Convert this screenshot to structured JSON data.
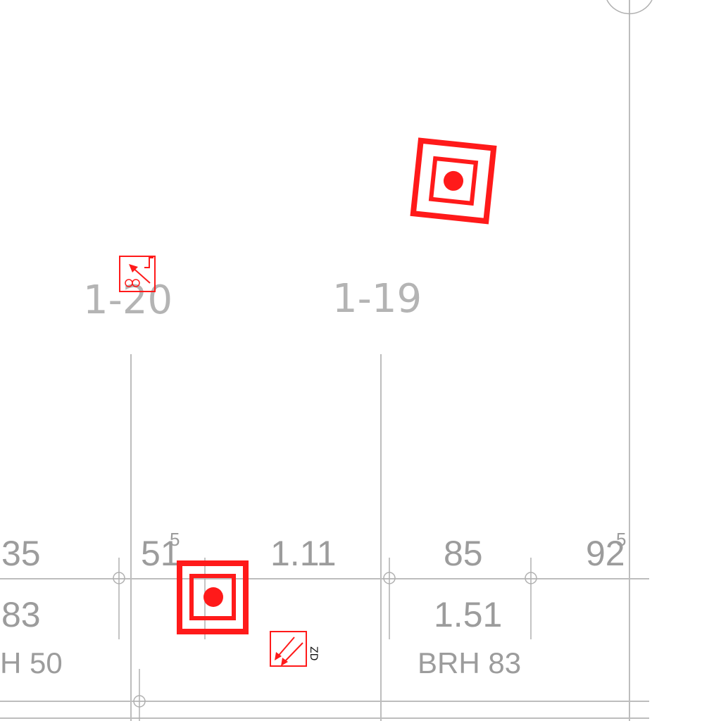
{
  "rooms": [
    {
      "id": "room-1-20",
      "label": "1-20"
    },
    {
      "id": "room-1-19",
      "label": "1-19"
    }
  ],
  "openings": {
    "widths": [
      {
        "main": "35",
        "sup": ""
      },
      {
        "main": "51",
        "sup": "5"
      },
      {
        "main": "1.11",
        "sup": ""
      },
      {
        "main": "85",
        "sup": ""
      },
      {
        "main": "92",
        "sup": "5"
      }
    ],
    "heights": [
      {
        "main": "83"
      },
      {
        "main": "1.51"
      }
    ],
    "brh": [
      {
        "text": "H 50"
      },
      {
        "text": "BRH 83"
      }
    ]
  },
  "symbols": {
    "wall_outlet_icon": "wall-outlet-icon",
    "ceiling_outlet_icon": "ceiling-outlet-icon",
    "return_air_icon": "return-air-icon",
    "supply_air_icon": "supply-air-icon",
    "supply_tag": "ZD"
  },
  "colors": {
    "symbol_red": "#ff1a1a",
    "label_gray": "#b4b4b4",
    "line_gray": "#bdbdbd"
  }
}
